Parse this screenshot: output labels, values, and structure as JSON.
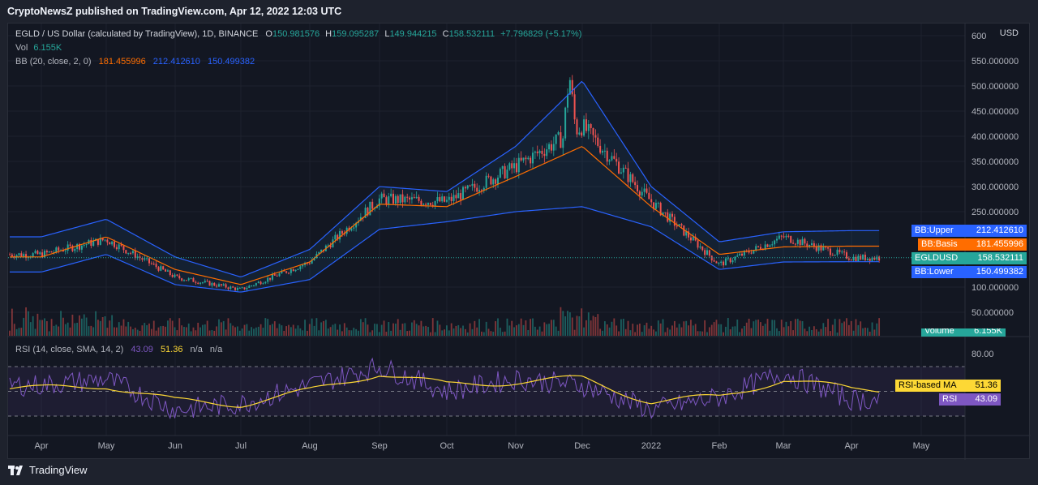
{
  "header": {
    "published": "CryptoNewsZ published on TradingView.com, Apr 12, 2022 12:03 UTC"
  },
  "legend": {
    "symbol": "EGLD / US Dollar (calculated by TradingView), 1D, BINANCE",
    "o_label": "O",
    "o": "150.981576",
    "h_label": "H",
    "h": "159.095287",
    "l_label": "L",
    "l": "149.944215",
    "c_label": "C",
    "c": "158.532111",
    "change": "+7.796829 (+5.17%)",
    "vol_label": "Vol",
    "vol": "6.155K",
    "bb_label": "BB (20, close, 2, 0)",
    "bb_basis": "181.455996",
    "bb_upper": "212.412610",
    "bb_lower": "150.499382"
  },
  "rsi_legend": {
    "label": "RSI (14, close, SMA, 14, 2)",
    "rsi": "43.09",
    "ma": "51.36",
    "na1": "n/a",
    "na2": "n/a"
  },
  "currency": "USD",
  "price_axis": [
    "600.000000",
    "550.000000",
    "500.000000",
    "450.000000",
    "400.000000",
    "350.000000",
    "300.000000",
    "250.000000",
    "100.000000",
    "50.000000"
  ],
  "price_labels": {
    "upper_name": "BB:Upper",
    "upper_val": "212.412610",
    "basis_name": "BB:Basis",
    "basis_val": "181.455996",
    "sym_name": "EGLDUSD",
    "sym_val": "158.532111",
    "lower_name": "BB:Lower",
    "lower_val": "150.499382",
    "volume_name": "Volume",
    "volume_val": "6.155K"
  },
  "rsi_axis": {
    "top": "80.00"
  },
  "rsi_labels": {
    "ma_name": "RSI-based MA",
    "ma_val": "51.36",
    "rsi_name": "RSI",
    "rsi_val": "43.09"
  },
  "time_axis": [
    "Apr",
    "May",
    "Jun",
    "Jul",
    "Aug",
    "Sep",
    "Oct",
    "Nov",
    "Dec",
    "2022",
    "Feb",
    "Mar",
    "Apr",
    "May"
  ],
  "footer": {
    "brand": "TradingView"
  },
  "colors": {
    "up": "#26a69a",
    "down": "#ef5350",
    "bb_line": "#2962ff",
    "basis": "#ff6d00",
    "rsi": "#7e57c2",
    "rsi_ma": "#fdd835",
    "background": "#131722"
  },
  "chart_data": {
    "type": "candlestick",
    "symbol": "EGLDUSD",
    "x": [
      "Apr",
      "May",
      "Jun",
      "Jul",
      "Aug",
      "Sep",
      "Oct",
      "Nov",
      "Dec",
      "2022",
      "Feb",
      "Mar",
      "Apr"
    ],
    "close": [
      165,
      195,
      120,
      95,
      150,
      275,
      270,
      340,
      420,
      270,
      145,
      200,
      158.5
    ],
    "bb_upper": [
      200,
      235,
      160,
      120,
      175,
      300,
      290,
      380,
      510,
      300,
      190,
      210,
      212.4
    ],
    "bb_basis": [
      160,
      200,
      135,
      105,
      150,
      265,
      260,
      320,
      380,
      260,
      165,
      180,
      181.5
    ],
    "bb_lower": [
      130,
      165,
      105,
      90,
      115,
      215,
      230,
      250,
      260,
      220,
      135,
      150,
      150.5
    ],
    "rsi": [
      55,
      60,
      35,
      40,
      55,
      70,
      50,
      60,
      55,
      35,
      45,
      65,
      43.09
    ],
    "rsi_ma": [
      52,
      55,
      42,
      40,
      50,
      65,
      55,
      58,
      60,
      42,
      45,
      60,
      51.36
    ],
    "ylim": [
      0,
      600
    ]
  }
}
